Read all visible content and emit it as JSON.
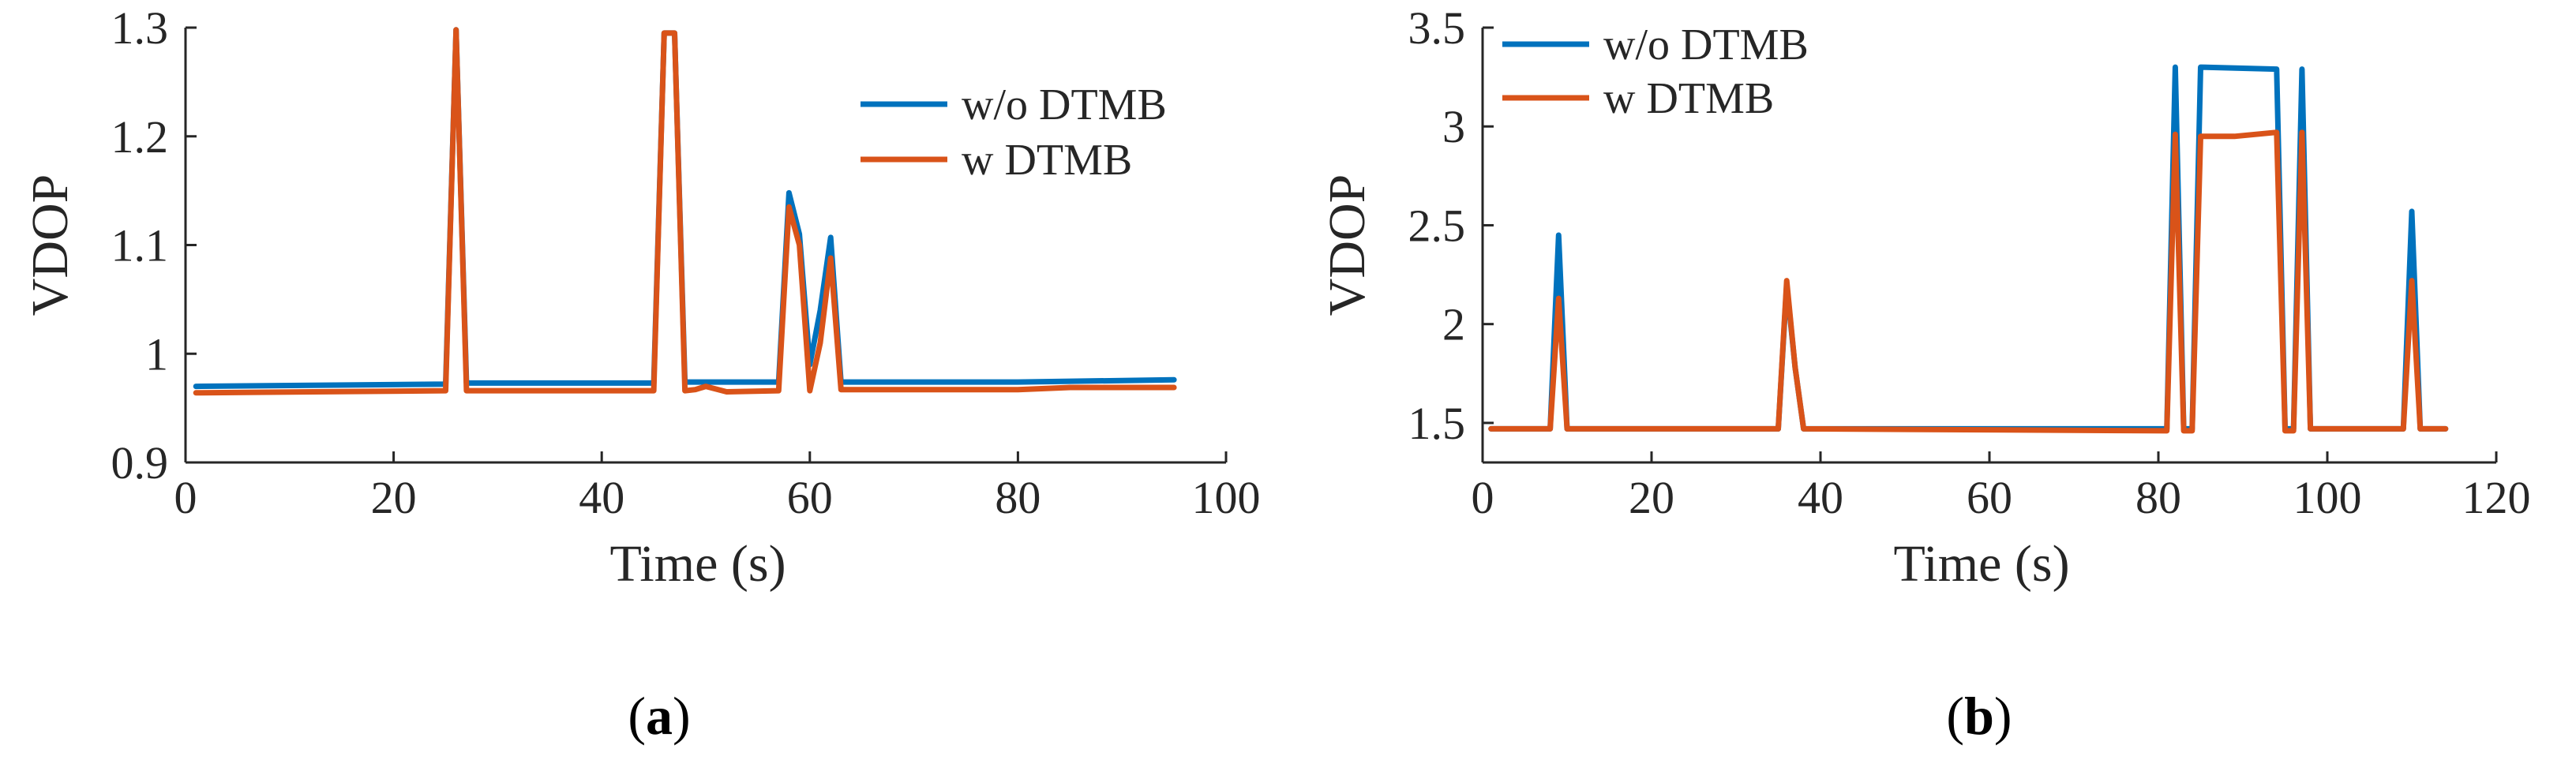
{
  "chart_data": [
    {
      "type": "line",
      "panel_label_open": "(",
      "panel_label_letter": "a",
      "panel_label_close": ")",
      "xlabel": "Time (s)",
      "ylabel": "VDOP",
      "xlim": [
        0,
        100
      ],
      "ylim": [
        0.9,
        1.3
      ],
      "xticks": [
        0,
        20,
        40,
        60,
        80,
        100
      ],
      "yticks": [
        0.9,
        1,
        1.1,
        1.2,
        1.3
      ],
      "ytick_labels": [
        "0.9",
        "1",
        "1.1",
        "1.2",
        "1.3"
      ],
      "legend_position": "top-right",
      "series": [
        {
          "name": "w/o DTMB",
          "color": "#0072BD",
          "x": [
            1,
            25,
            26,
            27,
            45,
            46,
            47,
            48,
            57,
            58,
            59,
            60,
            61,
            62,
            63,
            80,
            95
          ],
          "y": [
            0.97,
            0.972,
            1.298,
            0.973,
            0.973,
            1.295,
            1.295,
            0.974,
            0.974,
            1.148,
            1.11,
            0.99,
            1.04,
            1.107,
            0.974,
            0.974,
            0.976
          ]
        },
        {
          "name": "w DTMB",
          "color": "#D95319",
          "x": [
            1,
            25,
            26,
            27,
            45,
            46,
            47,
            48,
            49,
            50,
            52,
            57,
            58,
            59,
            60,
            61,
            62,
            63,
            80,
            85,
            95
          ],
          "y": [
            0.964,
            0.966,
            1.298,
            0.966,
            0.966,
            1.295,
            1.295,
            0.966,
            0.967,
            0.97,
            0.965,
            0.966,
            1.135,
            1.1,
            0.966,
            1.01,
            1.088,
            0.967,
            0.967,
            0.969,
            0.969
          ]
        }
      ]
    },
    {
      "type": "line",
      "panel_label_open": "(",
      "panel_label_letter": "b",
      "panel_label_close": ")",
      "xlabel": "Time (s)",
      "ylabel": "VDOP",
      "xlim": [
        0,
        120
      ],
      "ylim": [
        1.3,
        3.5
      ],
      "xticks": [
        0,
        20,
        40,
        60,
        80,
        100,
        120
      ],
      "yticks": [
        1.5,
        2,
        2.5,
        3,
        3.5
      ],
      "ytick_labels": [
        "1.5",
        "2",
        "2.5",
        "3",
        "3.5"
      ],
      "legend_position": "top-left",
      "series": [
        {
          "name": "w/o DTMB",
          "color": "#0072BD",
          "x": [
            1,
            8,
            9,
            10,
            35,
            36,
            37,
            38,
            81,
            82,
            83,
            84,
            85,
            94,
            95,
            96,
            97,
            98,
            109,
            110,
            111,
            114
          ],
          "y": [
            1.47,
            1.47,
            2.45,
            1.47,
            1.47,
            2.2,
            1.78,
            1.47,
            1.47,
            3.3,
            1.47,
            1.47,
            3.3,
            3.29,
            1.47,
            1.47,
            3.29,
            1.47,
            1.47,
            2.57,
            1.47,
            1.47
          ]
        },
        {
          "name": "w DTMB",
          "color": "#D95319",
          "x": [
            1,
            8,
            9,
            10,
            35,
            36,
            37,
            38,
            81,
            82,
            83,
            84,
            85,
            89,
            94,
            95,
            96,
            97,
            98,
            109,
            110,
            111,
            114
          ],
          "y": [
            1.47,
            1.47,
            2.13,
            1.47,
            1.47,
            2.22,
            1.78,
            1.47,
            1.46,
            2.96,
            1.46,
            1.46,
            2.95,
            2.95,
            2.97,
            1.46,
            1.46,
            2.97,
            1.47,
            1.47,
            2.22,
            1.47,
            1.47
          ]
        }
      ]
    }
  ]
}
